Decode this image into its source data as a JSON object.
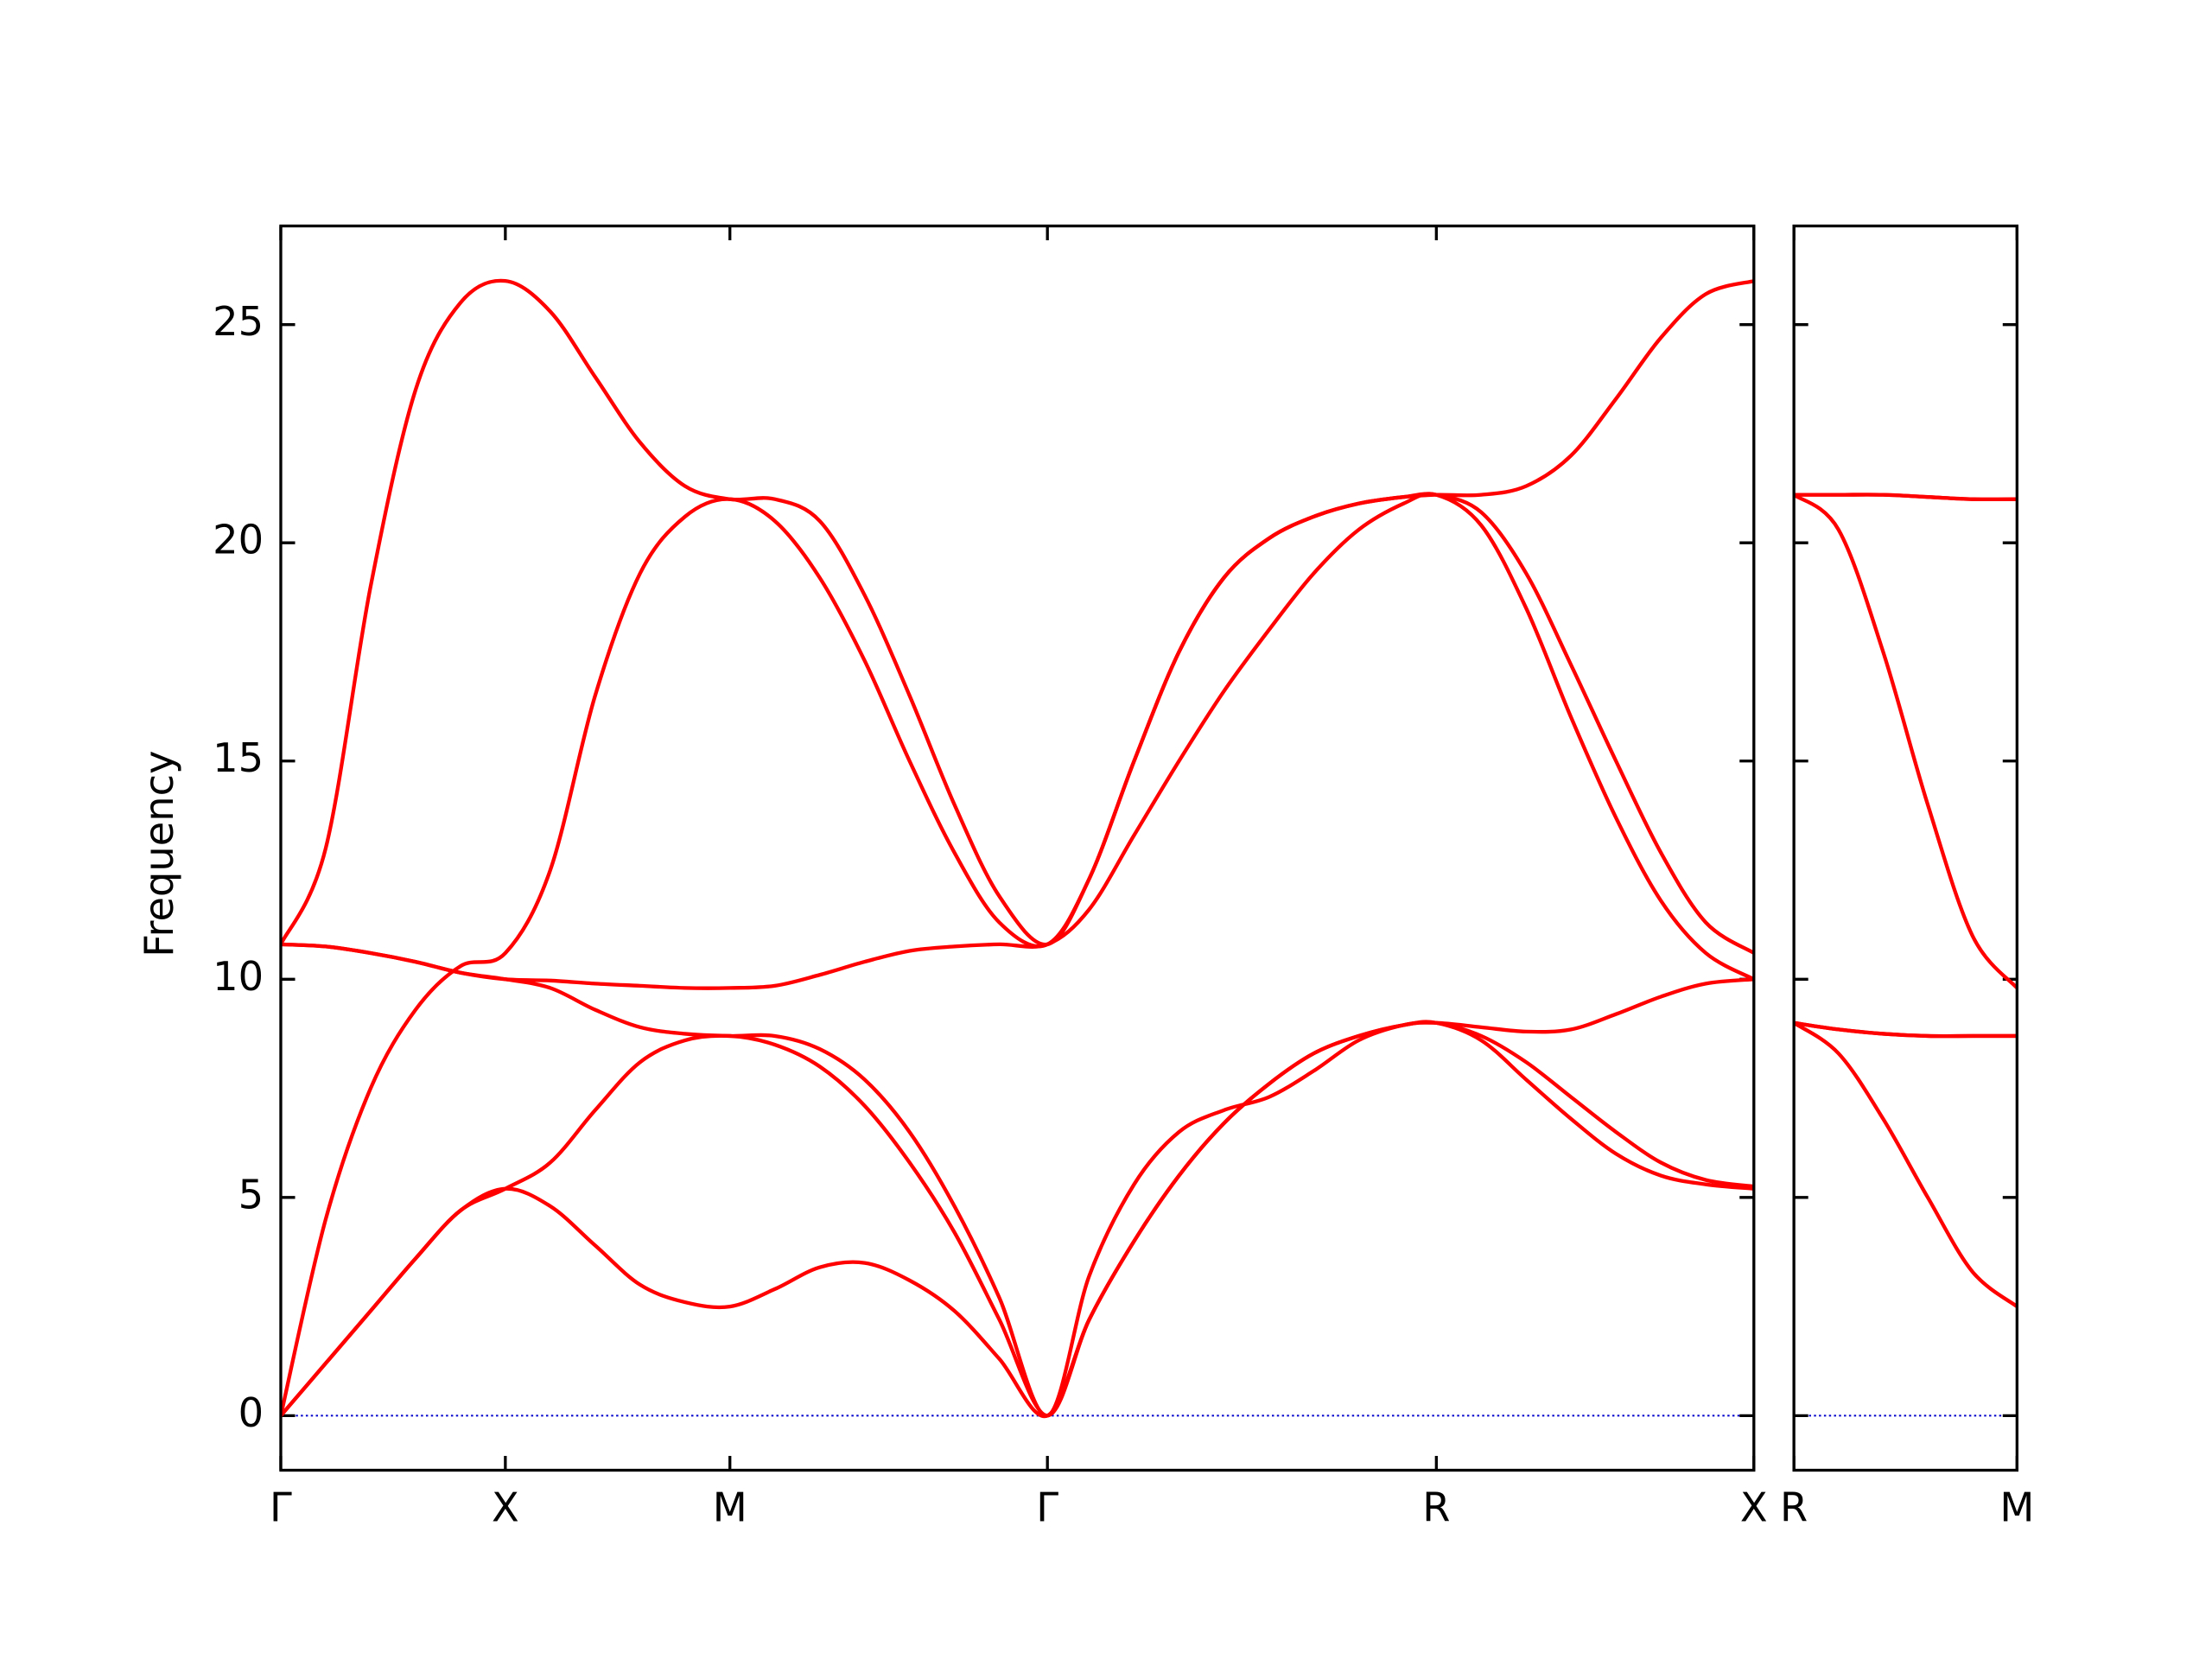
{
  "chart_data": [
    {
      "type": "line",
      "ylabel": "Frequency",
      "x": [
        0,
        0.1,
        0.2,
        0.3,
        0.4,
        0.5,
        0.6,
        0.7,
        0.8,
        0.9,
        1.0,
        1.1,
        1.2,
        1.3,
        1.4,
        1.5,
        1.6,
        1.707,
        1.8,
        1.9,
        2.0,
        2.1,
        2.2,
        2.3,
        2.4,
        2.5,
        2.573,
        2.673,
        2.773,
        2.873,
        2.973,
        3.073,
        3.173,
        3.28
      ],
      "xlim": [
        0,
        3.28
      ],
      "xticks": [
        {
          "value": 0,
          "label": "Γ"
        },
        {
          "value": 0.5,
          "label": "X"
        },
        {
          "value": 1.0,
          "label": "M"
        },
        {
          "value": 1.707,
          "label": "Γ"
        },
        {
          "value": 2.573,
          "label": "R"
        },
        {
          "value": 3.28,
          "label": "X"
        }
      ],
      "ylim": [
        -1.25,
        27.26
      ],
      "yticks": [
        0,
        5,
        10,
        15,
        20,
        25
      ],
      "reference_line": {
        "value": 0,
        "color": "#0000cc"
      },
      "series": [
        {
          "color": "#ff0000",
          "values": [
            10.8,
            13,
            19,
            23.5,
            25.5,
            26,
            25.3,
            23.8,
            22.3,
            21.3,
            21,
            21.0,
            20.5,
            18.8,
            16.5,
            14,
            11.9,
            10.8,
            12.3,
            15,
            17.5,
            19.2,
            20.1,
            20.6,
            20.9,
            21.05,
            21.1,
            21.1,
            21.3,
            22,
            23.3,
            24.7,
            25.7,
            26
          ]
        },
        {
          "color": "#ff0000",
          "values": [
            0,
            4.5,
            7.5,
            9.3,
            10.3,
            10.6,
            12.5,
            16.5,
            19.3,
            20.6,
            21,
            20.5,
            19.2,
            17.3,
            15,
            12.9,
            11.3,
            10.8,
            12.3,
            15,
            17.5,
            19.2,
            20.1,
            20.6,
            20.9,
            21.05,
            21.1,
            20.7,
            19.3,
            17.2,
            15.0,
            12.9,
            11.3,
            10.6
          ]
        },
        {
          "color": "#ff0000",
          "values": [
            10.8,
            10.75,
            10.6,
            10.4,
            10.15,
            10.0,
            9.97,
            9.9,
            9.85,
            9.8,
            9.8,
            9.85,
            10.1,
            10.4,
            10.65,
            10.75,
            10.8,
            10.8,
            11.6,
            13.3,
            15.0,
            16.6,
            18.0,
            19.3,
            20.3,
            20.9,
            21.1,
            20.4,
            18.5,
            16.0,
            13.7,
            11.8,
            10.6,
            10.0
          ]
        },
        {
          "color": "#ff0000",
          "values": [
            10.8,
            10.75,
            10.6,
            10.4,
            10.15,
            10.0,
            9.8,
            9.3,
            8.9,
            8.75,
            8.7,
            8.7,
            8.4,
            7.7,
            6.5,
            4.8,
            2.7,
            0,
            3.2,
            5.3,
            6.5,
            7.0,
            7.3,
            7.9,
            8.6,
            8.95,
            9.0,
            8.9,
            8.8,
            8.85,
            9.2,
            9.6,
            9.9,
            10.0
          ]
        },
        {
          "color": "#ff0000",
          "values": [
            0,
            1.2,
            2.4,
            3.6,
            4.7,
            5.2,
            5.8,
            7.0,
            8.1,
            8.6,
            8.7,
            8.5,
            8.0,
            7.1,
            5.8,
            4.2,
            2.2,
            0,
            2.2,
            4.0,
            5.5,
            6.7,
            7.6,
            8.3,
            8.7,
            8.95,
            9.0,
            8.7,
            8.1,
            7.3,
            6.5,
            5.8,
            5.4,
            5.25
          ]
        },
        {
          "color": "#ff0000",
          "values": [
            0,
            1.2,
            2.4,
            3.6,
            4.7,
            5.2,
            4.8,
            3.9,
            3.0,
            2.6,
            2.5,
            2.9,
            3.4,
            3.5,
            3.1,
            2.4,
            1.3,
            0,
            2.2,
            4.0,
            5.5,
            6.7,
            7.6,
            8.3,
            8.7,
            8.95,
            9.0,
            8.6,
            7.7,
            6.8,
            6.0,
            5.5,
            5.3,
            5.2
          ]
        }
      ]
    },
    {
      "type": "line",
      "x": [
        0,
        0.1,
        0.2,
        0.3,
        0.4,
        0.5
      ],
      "xlim": [
        0,
        0.5
      ],
      "xticks": [
        {
          "value": 0,
          "label": "R"
        },
        {
          "value": 0.5,
          "label": "M"
        }
      ],
      "ylim": [
        -1.25,
        27.26
      ],
      "yticks": [
        0,
        5,
        10,
        15,
        20,
        25
      ],
      "reference_line": {
        "value": 0,
        "color": "#0000cc"
      },
      "series": [
        {
          "color": "#ff0000",
          "values": [
            21.1,
            21.1,
            21.1,
            21.05,
            21.0,
            21.0
          ]
        },
        {
          "color": "#ff0000",
          "values": [
            21.1,
            21.1,
            21.1,
            21.05,
            21.0,
            21.0
          ]
        },
        {
          "color": "#ff0000",
          "values": [
            21.1,
            20.3,
            17.5,
            14,
            11,
            9.8
          ]
        },
        {
          "color": "#ff0000",
          "values": [
            9.0,
            8.85,
            8.75,
            8.7,
            8.7,
            8.7
          ]
        },
        {
          "color": "#ff0000",
          "values": [
            9.0,
            8.85,
            8.75,
            8.7,
            8.7,
            8.7
          ]
        },
        {
          "color": "#ff0000",
          "values": [
            9.0,
            8.3,
            6.8,
            5.0,
            3.3,
            2.5
          ]
        }
      ]
    }
  ]
}
